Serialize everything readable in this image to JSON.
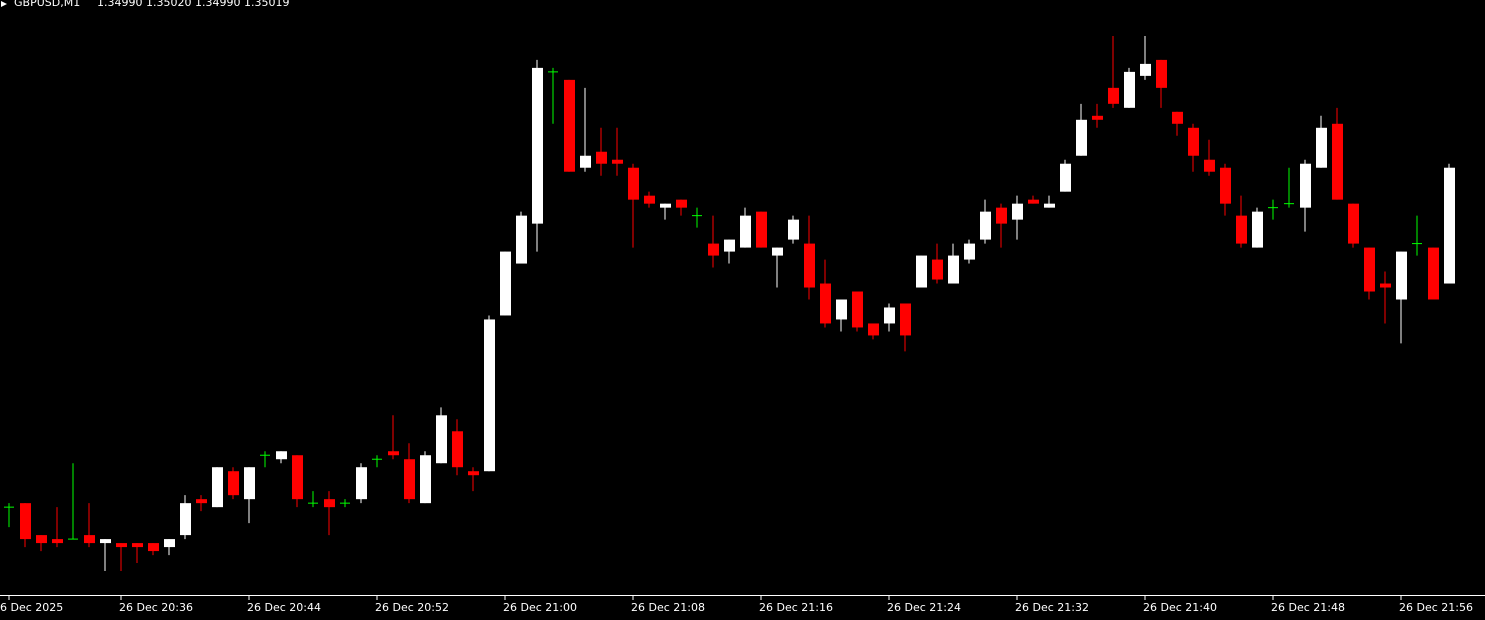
{
  "chart_data": {
    "type": "candlestick",
    "title": "GBPUSD,M1",
    "ohlc_label": "1.34990 1.35020 1.34990 1.35019",
    "bull_color": "#ffffff",
    "bear_color": "#ff0000",
    "doji_color": "#00ff00",
    "grid": false,
    "ylim": [
      1.34912,
      1.35061
    ],
    "categories": [
      "20:29",
      "20:30",
      "20:31",
      "20:32",
      "20:33",
      "20:34",
      "20:35",
      "20:36",
      "20:37",
      "20:38",
      "20:39",
      "20:40",
      "20:41",
      "20:42",
      "20:43",
      "20:44",
      "20:45",
      "20:46",
      "20:47",
      "20:48",
      "20:49",
      "20:50",
      "20:51",
      "20:52",
      "20:53",
      "20:54",
      "20:55",
      "20:56",
      "20:57",
      "20:58",
      "20:59",
      "21:00",
      "21:01",
      "21:02",
      "21:03",
      "21:04",
      "21:05",
      "21:06",
      "21:07",
      "21:08",
      "21:09",
      "21:10",
      "21:11",
      "21:12",
      "21:13",
      "21:14",
      "21:15",
      "21:16",
      "21:17",
      "21:18",
      "21:19",
      "21:20",
      "21:21",
      "21:22",
      "21:23",
      "21:24",
      "21:25",
      "21:26",
      "21:27",
      "21:28",
      "21:29",
      "21:30",
      "21:31",
      "21:32",
      "21:33",
      "21:34",
      "21:35",
      "21:36",
      "21:37",
      "21:38",
      "21:39",
      "21:40",
      "21:41",
      "21:42",
      "21:43",
      "21:44",
      "21:45",
      "21:46",
      "21:47",
      "21:48",
      "21:49",
      "21:50",
      "21:51",
      "21:52",
      "21:53",
      "21:54",
      "21:55",
      "21:56",
      "21:57",
      "21:58",
      "21:59"
    ],
    "open": [
      1.34934,
      1.34935,
      1.34927,
      1.34926,
      1.34926,
      1.34927,
      1.34925,
      1.34925,
      1.34925,
      1.34925,
      1.34924,
      1.34927,
      1.34936,
      1.34934,
      1.34943,
      1.34936,
      1.34947,
      1.34946,
      1.34947,
      1.34935,
      1.34936,
      1.34935,
      1.34936,
      1.34946,
      1.34948,
      1.34946,
      1.34935,
      1.34945,
      1.34953,
      1.34943,
      1.34943,
      1.34982,
      1.34995,
      1.35005,
      1.35043,
      1.35041,
      1.35019,
      1.35023,
      1.35021,
      1.35019,
      1.35012,
      1.35009,
      1.35011,
      1.35007,
      1.35,
      1.34998,
      1.34999,
      1.35008,
      1.34997,
      1.35001,
      1.35,
      1.3499,
      1.34981,
      1.34988,
      1.3498,
      1.3498,
      1.34985,
      1.34989,
      1.34996,
      1.3499,
      1.34996,
      1.35001,
      1.35009,
      1.35006,
      1.35011,
      1.35009,
      1.35013,
      1.35022,
      1.35032,
      1.35039,
      1.35034,
      1.35042,
      1.35046,
      1.35033,
      1.35029,
      1.35021,
      1.35019,
      1.35007,
      1.34999,
      1.35009,
      1.3501,
      1.35009,
      1.35019,
      1.3503,
      1.3501,
      1.34999,
      1.3499,
      1.34986,
      1.35,
      1.34999,
      1.3499
    ],
    "high": [
      1.34935,
      1.34935,
      1.34927,
      1.34934,
      1.34945,
      1.34935,
      1.34926,
      1.34925,
      1.34925,
      1.34925,
      1.34926,
      1.34937,
      1.34937,
      1.34944,
      1.34944,
      1.34944,
      1.34948,
      1.34948,
      1.34947,
      1.34938,
      1.34938,
      1.34936,
      1.34945,
      1.34947,
      1.34957,
      1.3495,
      1.34948,
      1.34959,
      1.34956,
      1.34944,
      1.34982,
      1.34998,
      1.35008,
      1.35046,
      1.35044,
      1.35041,
      1.35039,
      1.35029,
      1.35029,
      1.3502,
      1.35013,
      1.3501,
      1.35011,
      1.35009,
      1.35007,
      1.35001,
      1.35009,
      1.35008,
      1.34999,
      1.35007,
      1.35007,
      1.34996,
      1.34986,
      1.34988,
      1.3498,
      1.34985,
      1.34985,
      1.34997,
      1.35,
      1.35,
      1.35001,
      1.35011,
      1.3501,
      1.35012,
      1.35012,
      1.35012,
      1.35021,
      1.35035,
      1.35035,
      1.35052,
      1.35044,
      1.35052,
      1.35046,
      1.35033,
      1.3503,
      1.35026,
      1.3502,
      1.35012,
      1.35009,
      1.35011,
      1.35019,
      1.35021,
      1.35032,
      1.35034,
      1.3501,
      1.34999,
      1.34993,
      1.34998,
      1.35007,
      1.34999,
      1.3502
    ],
    "low": [
      1.34929,
      1.34924,
      1.34923,
      1.34924,
      1.34926,
      1.34924,
      1.34918,
      1.34918,
      1.3492,
      1.34922,
      1.34922,
      1.34926,
      1.34933,
      1.34934,
      1.34936,
      1.3493,
      1.34944,
      1.34945,
      1.34934,
      1.34934,
      1.34927,
      1.34934,
      1.34935,
      1.34944,
      1.34946,
      1.34935,
      1.34935,
      1.34945,
      1.34942,
      1.34938,
      1.34943,
      1.34982,
      1.34995,
      1.34998,
      1.3503,
      1.35018,
      1.35018,
      1.35017,
      1.35017,
      1.34999,
      1.35009,
      1.35006,
      1.35007,
      1.35004,
      1.34994,
      1.34995,
      1.34999,
      1.34999,
      1.34989,
      1.35,
      1.34986,
      1.34979,
      1.34978,
      1.34978,
      1.34976,
      1.34978,
      1.34973,
      1.34989,
      1.3499,
      1.3499,
      1.34995,
      1.35,
      1.34999,
      1.35001,
      1.3501,
      1.35009,
      1.35013,
      1.35022,
      1.35029,
      1.35034,
      1.35034,
      1.35041,
      1.35034,
      1.35027,
      1.35018,
      1.35017,
      1.35007,
      1.34999,
      1.34999,
      1.35006,
      1.35009,
      1.35003,
      1.35019,
      1.35011,
      1.34999,
      1.34986,
      1.3498,
      1.34975,
      1.34997,
      1.34986,
      1.3499
    ],
    "close": [
      1.34934,
      1.34926,
      1.34925,
      1.34925,
      1.34926,
      1.34925,
      1.34926,
      1.34924,
      1.34924,
      1.34923,
      1.34926,
      1.34935,
      1.34935,
      1.34944,
      1.34937,
      1.34944,
      1.34947,
      1.34948,
      1.34936,
      1.34935,
      1.34934,
      1.34935,
      1.34944,
      1.34946,
      1.34947,
      1.34936,
      1.34947,
      1.34957,
      1.34944,
      1.34942,
      1.34981,
      1.34998,
      1.35007,
      1.35044,
      1.35043,
      1.35018,
      1.35022,
      1.3502,
      1.3502,
      1.35011,
      1.3501,
      1.3501,
      1.35009,
      1.35007,
      1.34997,
      1.35001,
      1.35007,
      1.34999,
      1.34999,
      1.35006,
      1.34989,
      1.3498,
      1.34986,
      1.34979,
      1.34977,
      1.34984,
      1.34977,
      1.34997,
      1.34991,
      1.34997,
      1.35,
      1.35008,
      1.35005,
      1.3501,
      1.3501,
      1.3501,
      1.3502,
      1.35031,
      1.35031,
      1.35035,
      1.35043,
      1.35045,
      1.35039,
      1.3503,
      1.35022,
      1.35018,
      1.3501,
      1.35,
      1.35008,
      1.35009,
      1.3501,
      1.3502,
      1.35029,
      1.35011,
      1.35,
      1.34988,
      1.34989,
      1.34998,
      1.35,
      1.34986,
      1.35019
    ],
    "xticks": [
      {
        "value": "20:29",
        "label": "6 Dec 2025"
      },
      {
        "value": "20:36",
        "label": "26 Dec 20:36"
      },
      {
        "value": "20:44",
        "label": "26 Dec 20:44"
      },
      {
        "value": "20:52",
        "label": "26 Dec 20:52"
      },
      {
        "value": "21:00",
        "label": "26 Dec 21:00"
      },
      {
        "value": "21:08",
        "label": "26 Dec 21:08"
      },
      {
        "value": "21:16",
        "label": "26 Dec 21:16"
      },
      {
        "value": "21:24",
        "label": "26 Dec 21:24"
      },
      {
        "value": "21:32",
        "label": "26 Dec 21:32"
      },
      {
        "value": "21:40",
        "label": "26 Dec 21:40"
      },
      {
        "value": "21:48",
        "label": "26 Dec 21:48"
      },
      {
        "value": "21:56",
        "label": "26 Dec 21:56"
      }
    ]
  }
}
